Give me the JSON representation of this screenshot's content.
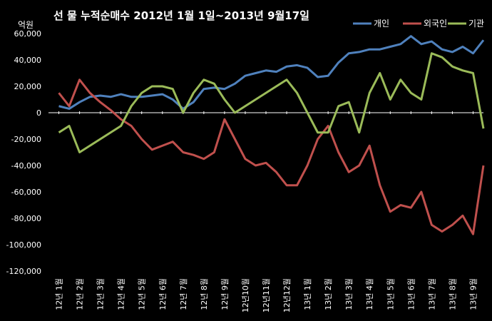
{
  "chart_data": {
    "type": "line",
    "title": "선 물 누적순매수 2012년 1월 1일~2013년 9월17일",
    "ylabel": "억원",
    "xlabel": "",
    "ylim": [
      -120000,
      60000
    ],
    "yticks": [
      60000,
      40000,
      20000,
      0,
      -20000,
      -40000,
      -60000,
      -80000,
      -100000,
      -120000
    ],
    "ytick_labels": [
      "60,000",
      "40,000",
      "20,000",
      "0",
      "-20,000",
      "-40,000",
      "-60,000",
      "-80,000",
      "-100,000",
      "-120,000"
    ],
    "grid": false,
    "legend": "top-right",
    "categories": [
      "12년 1월",
      "12년 2월",
      "12년 3월",
      "12년 4월",
      "12년 5월",
      "12년 6월",
      "12년 7월",
      "12년 8월",
      "12년 9월",
      "12년10월",
      "12년11월",
      "12년12월",
      "13년 1월",
      "13년 2월",
      "13년 3월",
      "13년 4월",
      "13년 5월",
      "13년 6월",
      "13년 7월",
      "13년 8월",
      "13년 9월"
    ],
    "x": [
      0,
      0.5,
      1,
      1.5,
      2,
      2.5,
      3,
      3.5,
      4,
      4.5,
      5,
      5.5,
      6,
      6.5,
      7,
      7.5,
      8,
      8.5,
      9,
      9.5,
      10,
      10.5,
      11,
      11.5,
      12,
      12.5,
      13,
      13.5,
      14,
      14.5,
      15,
      15.5,
      16,
      16.5,
      17,
      17.5,
      18,
      18.5,
      19,
      19.5,
      20,
      20.5
    ],
    "series": [
      {
        "name": "개인",
        "color": "#4f81bd",
        "values": [
          5000,
          3000,
          8000,
          12000,
          13000,
          12000,
          14000,
          12000,
          12000,
          13000,
          14000,
          10000,
          3000,
          8000,
          18000,
          19000,
          18000,
          22000,
          28000,
          30000,
          32000,
          31000,
          35000,
          36000,
          34000,
          27000,
          28000,
          38000,
          45000,
          46000,
          48000,
          48000,
          50000,
          52000,
          58000,
          52000,
          54000,
          48000,
          46000,
          50000,
          45000,
          55000
        ]
      },
      {
        "name": "외국인",
        "color": "#c0504d",
        "values": [
          15000,
          5000,
          25000,
          15000,
          8000,
          2000,
          -5000,
          -10000,
          -20000,
          -28000,
          -25000,
          -22000,
          -30000,
          -32000,
          -35000,
          -30000,
          -5000,
          -20000,
          -35000,
          -40000,
          -38000,
          -45000,
          -55000,
          -55000,
          -40000,
          -20000,
          -10000,
          -30000,
          -45000,
          -40000,
          -25000,
          -55000,
          -75000,
          -70000,
          -72000,
          -60000,
          -85000,
          -90000,
          -85000,
          -78000,
          -92000,
          -40000
        ]
      },
      {
        "name": "기관",
        "color": "#9bbb59",
        "values": [
          -15000,
          -10000,
          -30000,
          -25000,
          -20000,
          -15000,
          -10000,
          5000,
          15000,
          20000,
          20000,
          18000,
          0,
          15000,
          25000,
          22000,
          10000,
          0,
          5000,
          10000,
          15000,
          20000,
          25000,
          15000,
          0,
          -15000,
          -15000,
          5000,
          8000,
          -15000,
          15000,
          30000,
          10000,
          25000,
          15000,
          10000,
          45000,
          42000,
          35000,
          32000,
          30000,
          -12000
        ]
      }
    ]
  }
}
